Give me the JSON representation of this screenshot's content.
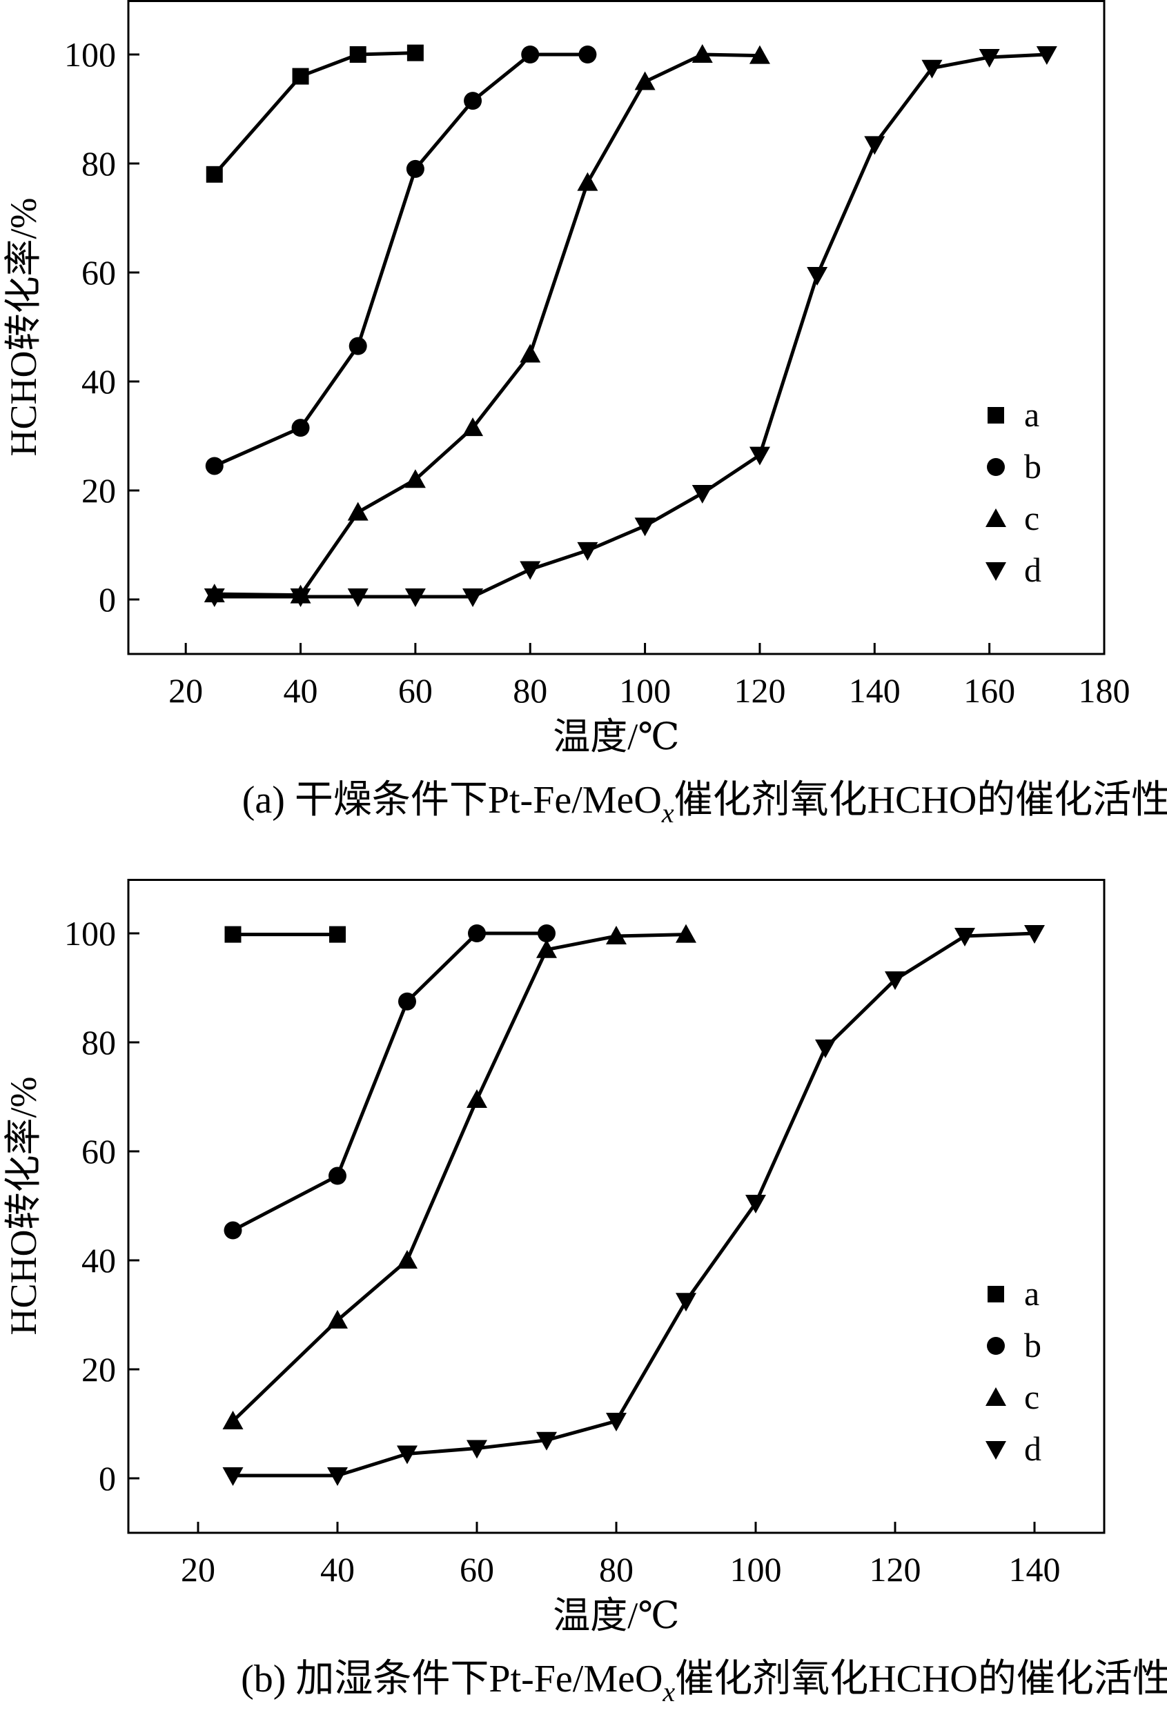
{
  "chart_data": [
    {
      "type": "line",
      "title": "",
      "caption": {
        "prefix": "(a) 干燥条件下Pt-Fe/MeO",
        "subscript": "x",
        "suffix": "催化剂氧化HCHO的催化活性"
      },
      "xlabel": "温度/℃",
      "ylabel": "HCHO转化率/%",
      "xlim": [
        10,
        180
      ],
      "ylim": [
        -10,
        110
      ],
      "xticks": [
        20,
        40,
        60,
        80,
        100,
        120,
        140,
        160,
        180
      ],
      "yticks": [
        0,
        20,
        40,
        60,
        80,
        100
      ],
      "grid": false,
      "legend_position": "right",
      "series": [
        {
          "name": "a",
          "marker": "square",
          "x": [
            25,
            40,
            50,
            60
          ],
          "y": [
            78,
            96,
            100,
            100.3
          ]
        },
        {
          "name": "b",
          "marker": "circle",
          "x": [
            25,
            40,
            50,
            60,
            70,
            80,
            90
          ],
          "y": [
            24.5,
            31.5,
            46.5,
            79,
            91.5,
            100,
            100
          ]
        },
        {
          "name": "c",
          "marker": "triangle-up",
          "x": [
            25,
            40,
            50,
            60,
            70,
            80,
            90,
            100,
            110,
            120
          ],
          "y": [
            1,
            0.8,
            16,
            22,
            31.5,
            45,
            76.5,
            95,
            100,
            99.8
          ]
        },
        {
          "name": "d",
          "marker": "triangle-down",
          "x": [
            25,
            40,
            50,
            60,
            70,
            80,
            90,
            100,
            110,
            120,
            130,
            140,
            150,
            160,
            170
          ],
          "y": [
            0.5,
            0.5,
            0.5,
            0.5,
            0.5,
            5.5,
            9,
            13.5,
            19.5,
            26.5,
            59.5,
            83.5,
            97.5,
            99.5,
            100
          ]
        }
      ]
    },
    {
      "type": "line",
      "title": "",
      "caption": {
        "prefix": "(b) 加湿条件下Pt-Fe/MeO",
        "subscript": "x",
        "suffix": "催化剂氧化HCHO的催化活性"
      },
      "xlabel": "温度/℃",
      "ylabel": "HCHO转化率/%",
      "xlim": [
        10,
        150
      ],
      "ylim": [
        -10,
        110
      ],
      "xticks": [
        20,
        40,
        60,
        80,
        100,
        120,
        140
      ],
      "yticks": [
        0,
        20,
        40,
        60,
        80,
        100
      ],
      "grid": false,
      "legend_position": "right",
      "series": [
        {
          "name": "a",
          "marker": "square",
          "x": [
            25,
            40
          ],
          "y": [
            99.8,
            99.8
          ]
        },
        {
          "name": "b",
          "marker": "circle",
          "x": [
            25,
            40,
            50,
            60,
            70
          ],
          "y": [
            45.5,
            55.5,
            87.5,
            100,
            100
          ]
        },
        {
          "name": "c",
          "marker": "triangle-up",
          "x": [
            25,
            40,
            50,
            60,
            70,
            80,
            90
          ],
          "y": [
            10.5,
            29,
            40,
            69.5,
            97,
            99.5,
            99.8
          ]
        },
        {
          "name": "d",
          "marker": "triangle-down",
          "x": [
            25,
            40,
            50,
            60,
            70,
            80,
            90,
            100,
            110,
            120,
            130,
            140
          ],
          "y": [
            0.5,
            0.5,
            4.5,
            5.5,
            7,
            10.5,
            32.5,
            50.5,
            79,
            91.5,
            99.5,
            100
          ]
        }
      ]
    }
  ]
}
